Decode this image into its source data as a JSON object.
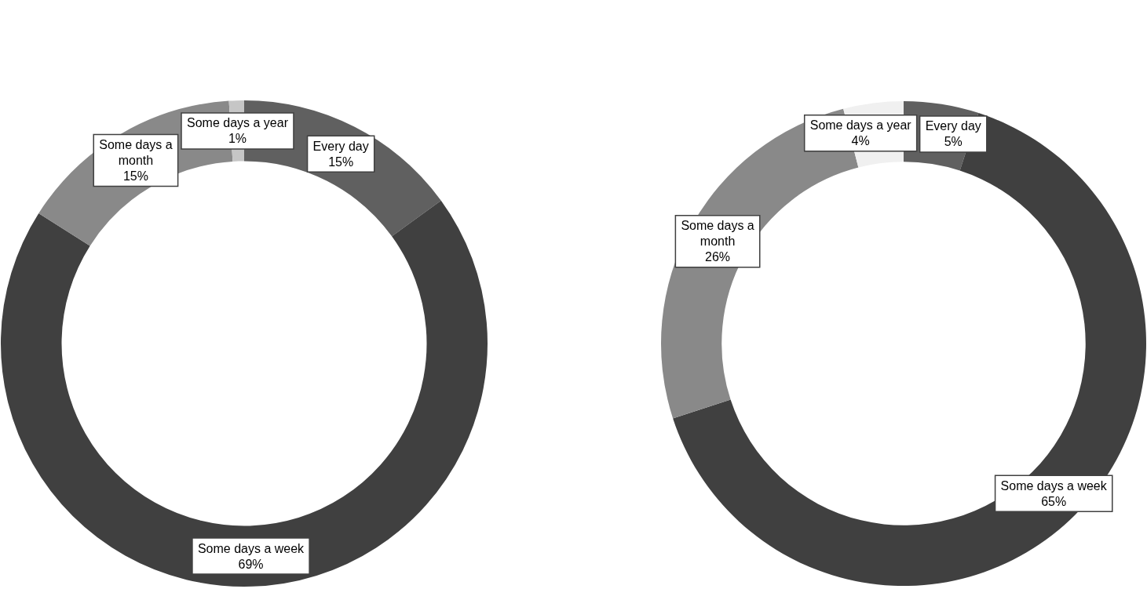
{
  "chart_data": [
    {
      "type": "donut",
      "categories": [
        "Every day",
        "Some days a week",
        "Some days a month",
        "Some days a year"
      ],
      "values": [
        15,
        69,
        15,
        1
      ],
      "colors": [
        "#606060",
        "#404040",
        "#898989",
        "#c6c6c6"
      ],
      "value_labels": [
        "15%",
        "69%",
        "15%",
        "1%"
      ]
    },
    {
      "type": "donut",
      "categories": [
        "Every day",
        "Some days a week",
        "Some days a month",
        "Some days a year"
      ],
      "values": [
        5,
        65,
        26,
        4
      ],
      "colors": [
        "#606060",
        "#404040",
        "#898989",
        "#f0f0f0"
      ],
      "value_labels": [
        "5%",
        "65%",
        "26%",
        "4%"
      ]
    }
  ]
}
